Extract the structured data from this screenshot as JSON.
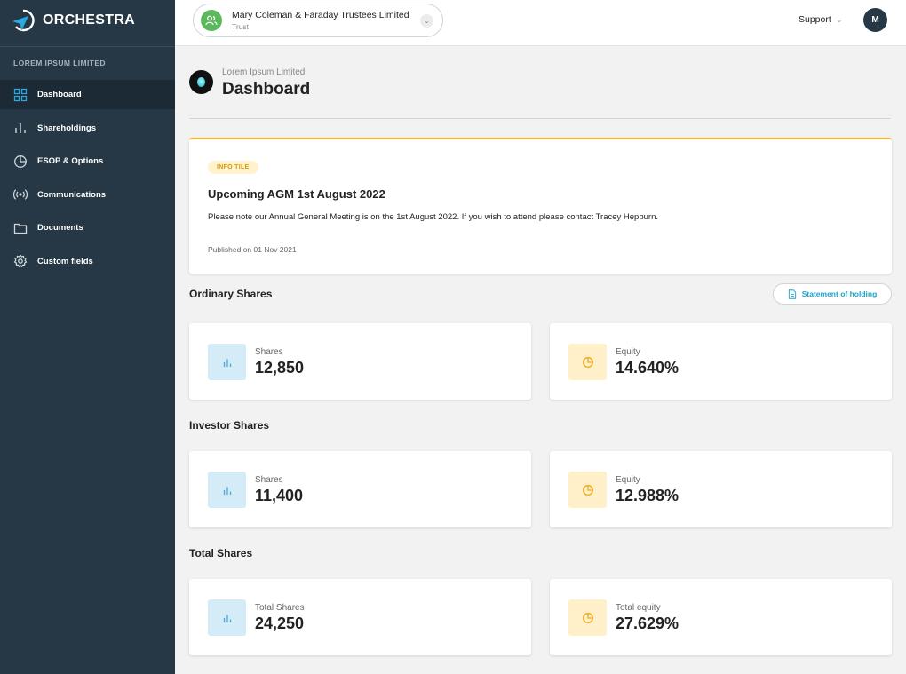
{
  "app": {
    "name": "ORCHESTRA"
  },
  "sidebar": {
    "org_name": "LOREM IPSUM LIMITED",
    "items": [
      {
        "label": "Dashboard",
        "icon": "grid-icon",
        "active": true
      },
      {
        "label": "Shareholdings",
        "icon": "bar-chart-icon",
        "active": false
      },
      {
        "label": "ESOP & Options",
        "icon": "pie-chart-icon",
        "active": false
      },
      {
        "label": "Communications",
        "icon": "broadcast-icon",
        "active": false
      },
      {
        "label": "Documents",
        "icon": "folder-icon",
        "active": false
      },
      {
        "label": "Custom fields",
        "icon": "gear-icon",
        "active": false
      }
    ]
  },
  "topbar": {
    "account_name": "Mary Coleman & Faraday Trustees Limited",
    "account_type": "Trust",
    "support_label": "Support",
    "user_initial": "M"
  },
  "header": {
    "company": "Lorem Ipsum Limited",
    "title": "Dashboard"
  },
  "info_tile": {
    "badge": "INFO TILE",
    "title": "Upcoming AGM 1st August 2022",
    "body": "Please note our Annual General Meeting is on the 1st August 2022. If you wish to attend please contact Tracey Hepburn.",
    "published": "Published on 01 Nov 2021"
  },
  "ordinary": {
    "title": "Ordinary Shares",
    "statement_label": "Statement of holding",
    "shares_label": "Shares",
    "shares_value": "12,850",
    "equity_label": "Equity",
    "equity_value": "14.640%"
  },
  "investor": {
    "title": "Investor Shares",
    "shares_label": "Shares",
    "shares_value": "11,400",
    "equity_label": "Equity",
    "equity_value": "12.988%"
  },
  "total": {
    "title": "Total Shares",
    "shares_label": "Total Shares",
    "shares_value": "24,250",
    "equity_label": "Total equity",
    "equity_value": "27.629%"
  },
  "colors": {
    "sidebar_bg": "#263845",
    "accent_blue": "#1aa3c8",
    "accent_yellow": "#f5b82e",
    "trust_green": "#5cb85c"
  }
}
